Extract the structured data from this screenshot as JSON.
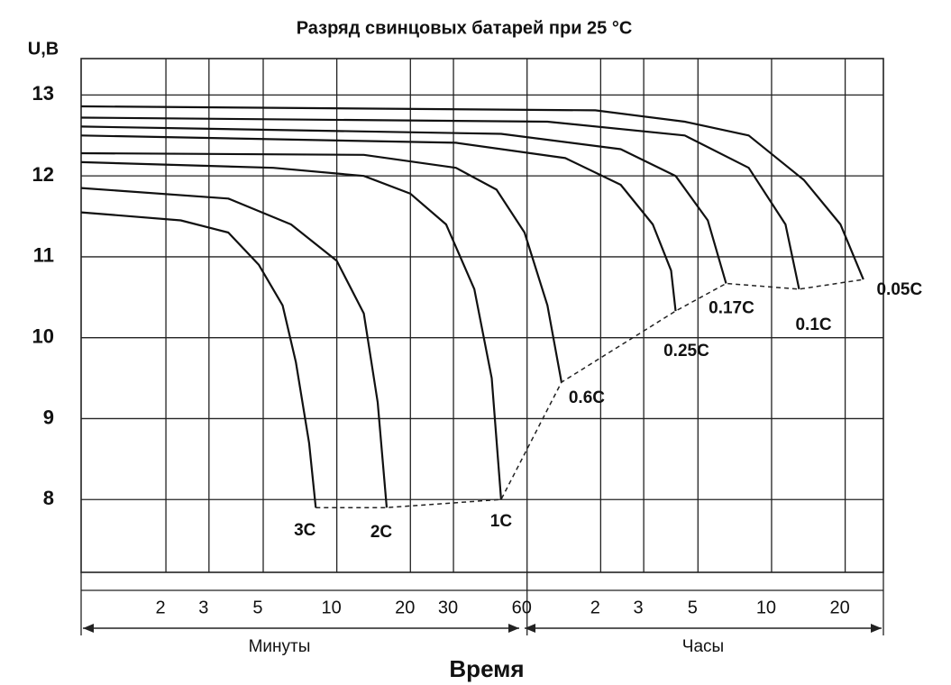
{
  "chart_data": {
    "type": "line",
    "title": "Разряд свинцовых батарей при 25 °С",
    "y_label": "U,В",
    "x_label": "Время",
    "x_group_labels": [
      "Минуты",
      "Часы"
    ],
    "xscale": "log",
    "xlim": [
      0.9,
      1720
    ],
    "ylim": [
      7.1,
      13.45
    ],
    "xticks": [
      2,
      3,
      5,
      10,
      20,
      30,
      60,
      {
        "value": 120,
        "label": "2"
      },
      {
        "value": 180,
        "label": "3"
      },
      {
        "value": 300,
        "label": "5"
      },
      {
        "value": 600,
        "label": "10"
      },
      {
        "value": 1200,
        "label": "20"
      }
    ],
    "yticks": [
      8,
      9,
      10,
      11,
      12,
      13
    ],
    "grid": true,
    "series": [
      {
        "name": "3C",
        "color": "#111111",
        "x": [
          0.9,
          2.3,
          3.6,
          4.8,
          6,
          6.8,
          7.7,
          8.2
        ],
        "values": [
          11.55,
          11.45,
          11.3,
          10.9,
          10.4,
          9.7,
          8.7,
          7.9
        ]
      },
      {
        "name": "2C",
        "color": "#111111",
        "x": [
          0.9,
          3.6,
          6.5,
          10,
          12.9,
          14.7,
          16
        ],
        "values": [
          11.85,
          11.72,
          11.4,
          10.95,
          10.3,
          9.2,
          7.9
        ]
      },
      {
        "name": "1C",
        "color": "#111111",
        "x": [
          0.9,
          5.5,
          12.9,
          20,
          28,
          36.5,
          43,
          47
        ],
        "values": [
          12.17,
          12.1,
          12,
          11.78,
          11.4,
          10.6,
          9.5,
          8
        ]
      },
      {
        "name": "0.6C",
        "color": "#111111",
        "x": [
          0.9,
          12.9,
          30.7,
          45,
          58.6,
          72.7,
          83
        ],
        "values": [
          12.28,
          12.26,
          12.1,
          11.83,
          11.3,
          10.4,
          9.45
        ]
      },
      {
        "name": "0.25C",
        "color": "#111111",
        "x": [
          0.9,
          30.7,
          86,
          145,
          196,
          233,
          243
        ],
        "values": [
          12.5,
          12.41,
          12.22,
          11.89,
          11.4,
          10.83,
          10.33
        ]
      },
      {
        "name": "0.17C",
        "color": "#111111",
        "x": [
          0.9,
          47,
          145,
          243,
          329,
          391
        ],
        "values": [
          12.61,
          12.52,
          12.33,
          12,
          11.45,
          10.67
        ]
      },
      {
        "name": "0.1C",
        "color": "#111111",
        "x": [
          0.9,
          72.7,
          265,
          484,
          684,
          778
        ],
        "values": [
          12.72,
          12.67,
          12.5,
          12.1,
          11.4,
          10.6
        ]
      },
      {
        "name": "0.05C",
        "color": "#111111",
        "x": [
          0.9,
          114,
          265,
          484,
          813,
          1148,
          1425
        ],
        "values": [
          12.86,
          12.81,
          12.67,
          12.5,
          11.95,
          11.4,
          10.72
        ]
      }
    ]
  }
}
